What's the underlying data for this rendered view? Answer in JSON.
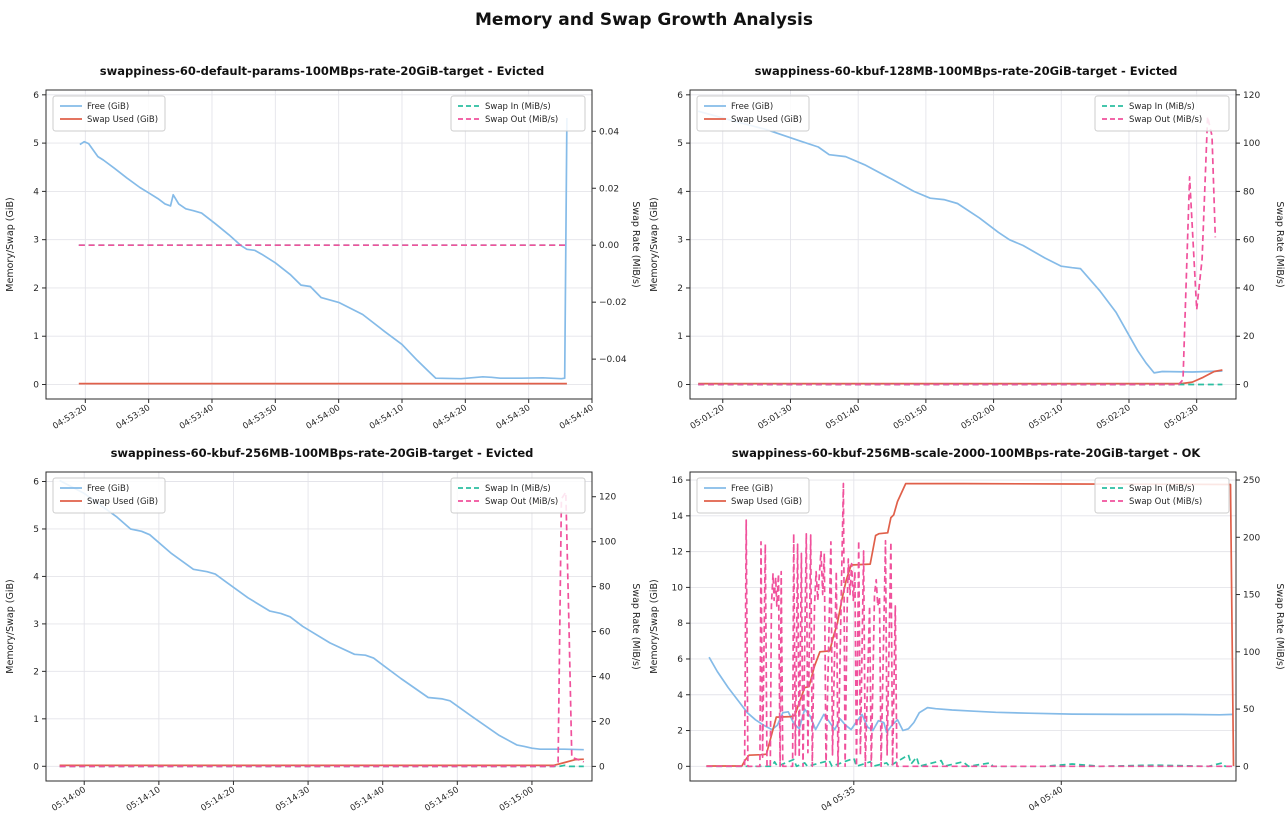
{
  "page": {
    "title": "Memory and Swap Growth Analysis"
  },
  "colors": {
    "free": "#85bbe8",
    "swap_used": "#e0604a",
    "swap_in": "#2bbfa0",
    "swap_out": "#f0519c",
    "grid": "#e4e4ea",
    "spine": "#2b2b2b",
    "text": "#262626"
  },
  "legends": {
    "left": [
      {
        "label": "Free (GiB)",
        "color": "free",
        "dash": false
      },
      {
        "label": "Swap Used (GiB)",
        "color": "swap_used",
        "dash": false
      }
    ],
    "right": [
      {
        "label": "Swap In (MiB/s)",
        "color": "swap_in",
        "dash": true
      },
      {
        "label": "Swap Out (MiB/s)",
        "color": "swap_out",
        "dash": true
      }
    ]
  },
  "chart_data": [
    {
      "type": "line",
      "title": "swappiness-60-default-params-100MBps-rate-20GiB-target - Evicted",
      "status": "Evicted",
      "ylabel_left": "Memory/Swap (GiB)",
      "ylabel_right": "Swap Rate (MiB/s)",
      "ylim_left": [
        -0.3,
        6.1
      ],
      "yticks_left": [
        0,
        1,
        2,
        3,
        4,
        5,
        6
      ],
      "ylim_right": [
        -0.054,
        0.0545
      ],
      "yticks_right": [
        0.04,
        0.02,
        0,
        -0.02,
        -0.04
      ],
      "yticks_right_labels": [
        "0.04",
        "0.02",
        "0.00",
        "−0.02",
        "−0.04"
      ],
      "xticks": {
        "pos": [
          0.072,
          0.188,
          0.304,
          0.42,
          0.536,
          0.652,
          0.768,
          0.884,
          1.0
        ],
        "labels": [
          "04:53:20",
          "04:53:30",
          "04:53:40",
          "04:53:50",
          "04:54:00",
          "04:54:10",
          "04:54:20",
          "04:54:30",
          "04:54:40"
        ]
      },
      "series": [
        {
          "name": "Free (GiB)",
          "axis": "left",
          "color": "free",
          "dash": false,
          "x": [
            0.062,
            0.07,
            0.078,
            0.095,
            0.105,
            0.125,
            0.148,
            0.172,
            0.188,
            0.205,
            0.218,
            0.228,
            0.233,
            0.243,
            0.256,
            0.27,
            0.285,
            0.31,
            0.335,
            0.357,
            0.368,
            0.382,
            0.395,
            0.42,
            0.447,
            0.467,
            0.484,
            0.504,
            0.536,
            0.58,
            0.62,
            0.652,
            0.68,
            0.7,
            0.714,
            0.76,
            0.8,
            0.816,
            0.832,
            0.87,
            0.91,
            0.944,
            0.95,
            0.954
          ],
          "y": [
            4.97,
            5.03,
            4.99,
            4.72,
            4.65,
            4.48,
            4.28,
            4.08,
            3.97,
            3.85,
            3.74,
            3.7,
            3.93,
            3.74,
            3.64,
            3.6,
            3.55,
            3.33,
            3.1,
            2.88,
            2.8,
            2.78,
            2.7,
            2.52,
            2.28,
            2.06,
            2.03,
            1.8,
            1.7,
            1.45,
            1.1,
            0.83,
            0.5,
            0.28,
            0.13,
            0.12,
            0.16,
            0.15,
            0.13,
            0.13,
            0.14,
            0.12,
            0.13,
            5.52
          ]
        },
        {
          "name": "Swap Used (GiB)",
          "axis": "left",
          "color": "swap_used",
          "dash": false,
          "x": [
            0.06,
            0.954
          ],
          "y": [
            0.02,
            0.02
          ]
        },
        {
          "name": "Swap In (MiB/s)",
          "axis": "right",
          "color": "swap_in",
          "dash": true,
          "x": [
            0.06,
            0.954
          ],
          "y": [
            0,
            0
          ]
        },
        {
          "name": "Swap Out (MiB/s)",
          "axis": "right",
          "color": "swap_out",
          "dash": true,
          "x": [
            0.06,
            0.954
          ],
          "y": [
            0,
            0
          ]
        }
      ]
    },
    {
      "type": "line",
      "title": "swappiness-60-kbuf-128MB-100MBps-rate-20GiB-target - Evicted",
      "status": "Evicted",
      "ylabel_left": "Memory/Swap (GiB)",
      "ylabel_right": "Swap Rate (MiB/s)",
      "ylim_left": [
        -0.3,
        6.1
      ],
      "yticks_left": [
        0,
        1,
        2,
        3,
        4,
        5,
        6
      ],
      "ylim_right": [
        -6,
        122
      ],
      "yticks_right": [
        0,
        20,
        40,
        60,
        80,
        100,
        120
      ],
      "yticks_right_labels": [
        "0",
        "20",
        "40",
        "60",
        "80",
        "100",
        "120"
      ],
      "xticks": {
        "pos": [
          0.06,
          0.184,
          0.308,
          0.432,
          0.556,
          0.68,
          0.804,
          0.928
        ],
        "labels": [
          "05:01:20",
          "05:01:30",
          "05:01:40",
          "05:01:50",
          "05:02:00",
          "05:02:10",
          "05:02:20",
          "05:02:30"
        ]
      },
      "series": [
        {
          "name": "Free (GiB)",
          "axis": "left",
          "color": "free",
          "dash": false,
          "x": [
            0.015,
            0.06,
            0.14,
            0.2,
            0.235,
            0.255,
            0.285,
            0.32,
            0.37,
            0.41,
            0.44,
            0.465,
            0.49,
            0.53,
            0.565,
            0.585,
            0.61,
            0.65,
            0.68,
            0.7,
            0.715,
            0.75,
            0.78,
            0.8,
            0.82,
            0.835,
            0.85,
            0.865,
            0.92,
            0.975
          ],
          "y": [
            5.66,
            5.52,
            5.28,
            5.05,
            4.92,
            4.76,
            4.72,
            4.55,
            4.25,
            4.0,
            3.86,
            3.83,
            3.75,
            3.45,
            3.15,
            3.0,
            2.88,
            2.62,
            2.45,
            2.42,
            2.4,
            1.95,
            1.5,
            1.1,
            0.7,
            0.45,
            0.24,
            0.27,
            0.26,
            0.28
          ]
        },
        {
          "name": "Swap Used (GiB)",
          "axis": "left",
          "color": "swap_used",
          "dash": false,
          "x": [
            0.015,
            0.9,
            0.92,
            0.94,
            0.96,
            0.975
          ],
          "y": [
            0.02,
            0.02,
            0.05,
            0.15,
            0.27,
            0.3
          ]
        },
        {
          "name": "Swap In (MiB/s)",
          "axis": "right",
          "color": "swap_in",
          "dash": true,
          "x": [
            0.015,
            0.975
          ],
          "y": [
            0,
            0
          ]
        },
        {
          "name": "Swap Out (MiB/s)",
          "axis": "right",
          "color": "swap_out",
          "dash": true,
          "x": [
            0.015,
            0.895,
            0.903,
            0.915,
            0.928,
            0.938,
            0.948,
            0.956,
            0.962
          ],
          "y": [
            0,
            0,
            2,
            86,
            31,
            52,
            111,
            103,
            61
          ]
        }
      ]
    },
    {
      "type": "line",
      "title": "swappiness-60-kbuf-256MB-100MBps-rate-20GiB-target - Evicted",
      "status": "Evicted",
      "ylabel_left": "Memory/Swap (GiB)",
      "ylabel_right": "Swap Rate (MiB/s)",
      "ylim_left": [
        -0.31,
        6.2
      ],
      "yticks_left": [
        0,
        1,
        2,
        3,
        4,
        5,
        6
      ],
      "ylim_right": [
        -6.5,
        131
      ],
      "yticks_right": [
        0,
        20,
        40,
        60,
        80,
        100,
        120
      ],
      "yticks_right_labels": [
        "0",
        "20",
        "40",
        "60",
        "80",
        "100",
        "120"
      ],
      "xticks": {
        "pos": [
          0.07,
          0.2067,
          0.3433,
          0.48,
          0.6167,
          0.7533,
          0.89
        ],
        "labels": [
          "05:14:00",
          "05:14:10",
          "05:14:20",
          "05:14:30",
          "05:14:40",
          "05:14:50",
          "05:15:00"
        ]
      },
      "series": [
        {
          "name": "Free (GiB)",
          "axis": "left",
          "color": "free",
          "dash": false,
          "x": [
            0.025,
            0.07,
            0.1,
            0.13,
            0.155,
            0.175,
            0.19,
            0.23,
            0.27,
            0.295,
            0.31,
            0.33,
            0.37,
            0.41,
            0.43,
            0.447,
            0.47,
            0.52,
            0.565,
            0.585,
            0.6,
            0.65,
            0.7,
            0.726,
            0.74,
            0.78,
            0.83,
            0.862,
            0.876,
            0.89,
            0.905,
            0.95,
            0.985
          ],
          "y": [
            6.02,
            5.75,
            5.5,
            5.25,
            5.0,
            4.95,
            4.88,
            4.48,
            4.15,
            4.1,
            4.05,
            3.88,
            3.55,
            3.27,
            3.22,
            3.15,
            2.95,
            2.6,
            2.36,
            2.34,
            2.28,
            1.85,
            1.45,
            1.42,
            1.38,
            1.05,
            0.65,
            0.45,
            0.42,
            0.38,
            0.36,
            0.36,
            0.35
          ]
        },
        {
          "name": "Swap Used (GiB)",
          "axis": "left",
          "color": "swap_used",
          "dash": false,
          "x": [
            0.025,
            0.93,
            0.95,
            0.97,
            0.985
          ],
          "y": [
            0.02,
            0.02,
            0.08,
            0.14,
            0.15
          ]
        },
        {
          "name": "Swap In (MiB/s)",
          "axis": "right",
          "color": "swap_in",
          "dash": true,
          "x": [
            0.025,
            0.94,
            0.95,
            0.958,
            0.985
          ],
          "y": [
            0,
            0,
            0.5,
            0,
            0
          ]
        },
        {
          "name": "Swap Out (MiB/s)",
          "axis": "right",
          "color": "swap_out",
          "dash": true,
          "x": [
            0.025,
            0.93,
            0.938,
            0.944,
            0.952,
            0.958,
            0.963,
            0.975,
            0.985
          ],
          "y": [
            0,
            0,
            2,
            119,
            122,
            60,
            4,
            3,
            2
          ]
        }
      ]
    },
    {
      "type": "line",
      "title": "swappiness-60-kbuf-256MB-scale-2000-100MBps-rate-20GiB-target - OK",
      "status": "OK",
      "ylabel_left": "Memory/Swap (GiB)",
      "ylabel_right": "Swap Rate (MiB/s)",
      "ylim_left": [
        -0.82,
        16.45
      ],
      "yticks_left": [
        0,
        2,
        4,
        6,
        8,
        10,
        12,
        14,
        16
      ],
      "ylim_right": [
        -12.8,
        257
      ],
      "yticks_right": [
        0,
        50,
        100,
        150,
        200,
        250
      ],
      "yticks_right_labels": [
        "0",
        "50",
        "100",
        "150",
        "200",
        "250"
      ],
      "xticks": {
        "pos": [
          0.3,
          0.68
        ],
        "labels": [
          "04 05:35",
          "04 05:40"
        ]
      },
      "series": [
        {
          "name": "Free (GiB)",
          "axis": "left",
          "color": "free",
          "dash": false,
          "x": [
            0.035,
            0.05,
            0.07,
            0.09,
            0.105,
            0.12,
            0.135,
            0.15,
            0.16,
            0.17,
            0.18,
            0.19,
            0.2,
            0.21,
            0.22,
            0.23,
            0.245,
            0.255,
            0.265,
            0.275,
            0.285,
            0.295,
            0.305,
            0.315,
            0.325,
            0.335,
            0.345,
            0.355,
            0.36,
            0.37,
            0.38,
            0.39,
            0.4,
            0.41,
            0.42,
            0.435,
            0.45,
            0.48,
            0.52,
            0.56,
            0.62,
            0.7,
            0.8,
            0.9,
            0.97,
            0.995
          ],
          "y": [
            6.1,
            5.3,
            4.4,
            3.6,
            3.0,
            2.6,
            2.3,
            2.05,
            2.3,
            3.0,
            3.05,
            2.4,
            2.1,
            3.2,
            2.8,
            2.05,
            2.9,
            2.5,
            2.05,
            2.65,
            2.3,
            2.05,
            2.5,
            2.9,
            2.2,
            2.0,
            2.55,
            2.45,
            1.9,
            2.3,
            2.6,
            2.0,
            2.1,
            2.45,
            3.0,
            3.28,
            3.22,
            3.15,
            3.08,
            3.02,
            2.97,
            2.92,
            2.9,
            2.9,
            2.88,
            2.9
          ]
        },
        {
          "name": "Swap Used (GiB)",
          "axis": "left",
          "color": "swap_used",
          "dash": false,
          "x": [
            0.03,
            0.095,
            0.1,
            0.108,
            0.13,
            0.14,
            0.148,
            0.158,
            0.185,
            0.192,
            0.2,
            0.21,
            0.218,
            0.228,
            0.238,
            0.256,
            0.262,
            0.27,
            0.278,
            0.286,
            0.295,
            0.33,
            0.34,
            0.346,
            0.362,
            0.368,
            0.373,
            0.38,
            0.395,
            0.5,
            0.7,
            0.9,
            0.99,
            0.9955
          ],
          "y": [
            0.02,
            0.02,
            0.3,
            0.62,
            0.65,
            0.68,
            1.6,
            2.75,
            2.78,
            2.85,
            3.55,
            4.4,
            4.45,
            5.6,
            6.4,
            6.45,
            7.2,
            8.0,
            9.3,
            10.4,
            11.25,
            11.3,
            12.9,
            13.0,
            13.05,
            13.9,
            14.05,
            14.8,
            15.8,
            15.8,
            15.78,
            15.76,
            15.75,
            0.02
          ]
        },
        {
          "name": "Swap In (MiB/s)",
          "axis": "right",
          "color": "swap_in",
          "dash": true,
          "x": [
            0.03,
            0.15,
            0.155,
            0.16,
            0.19,
            0.195,
            0.21,
            0.215,
            0.255,
            0.26,
            0.3,
            0.305,
            0.33,
            0.335,
            0.36,
            0.365,
            0.4,
            0.405,
            0.415,
            0.42,
            0.46,
            0.465,
            0.5,
            0.51,
            0.55,
            0.555,
            0.65,
            0.7,
            0.75,
            0.85,
            0.95,
            0.975,
            0.98,
            0.995
          ],
          "y": [
            0,
            0,
            4,
            0,
            6,
            0,
            3,
            0,
            5,
            0,
            7,
            0,
            4,
            0,
            3,
            0,
            10,
            2,
            8,
            0,
            5,
            0,
            4,
            0,
            3,
            0,
            0,
            2,
            0,
            1,
            0,
            3,
            0,
            0
          ]
        },
        {
          "name": "Swap Out (MiB/s)",
          "axis": "right",
          "color": "swap_out",
          "dash": true,
          "x": [
            0.03,
            0.1,
            0.103,
            0.106,
            0.128,
            0.13,
            0.133,
            0.138,
            0.141,
            0.147,
            0.149,
            0.152,
            0.154,
            0.157,
            0.159,
            0.162,
            0.165,
            0.167,
            0.17,
            0.188,
            0.19,
            0.193,
            0.197,
            0.2,
            0.204,
            0.207,
            0.213,
            0.216,
            0.221,
            0.224,
            0.228,
            0.231,
            0.234,
            0.237,
            0.24,
            0.243,
            0.246,
            0.249,
            0.258,
            0.261,
            0.268,
            0.271,
            0.281,
            0.284,
            0.288,
            0.29,
            0.293,
            0.296,
            0.299,
            0.302,
            0.305,
            0.309,
            0.312,
            0.318,
            0.321,
            0.329,
            0.332,
            0.338,
            0.341,
            0.344,
            0.347,
            0.35,
            0.358,
            0.361,
            0.368,
            0.371,
            0.376,
            0.379,
            0.4,
            0.7,
            0.995
          ],
          "y": [
            0,
            0,
            215,
            0,
            0,
            196,
            8,
            194,
            0,
            0,
            140,
            168,
            145,
            165,
            140,
            168,
            0,
            170,
            0,
            0,
            203,
            10,
            194,
            8,
            186,
            0,
            203,
            12,
            202,
            0,
            140,
            170,
            145,
            168,
            188,
            150,
            186,
            0,
            196,
            10,
            170,
            0,
            247,
            0,
            140,
            181,
            150,
            177,
            145,
            170,
            0,
            197,
            10,
            188,
            0,
            140,
            0,
            150,
            163,
            140,
            148,
            0,
            197,
            10,
            196,
            0,
            140,
            0,
            0,
            0,
            0
          ]
        }
      ]
    }
  ]
}
